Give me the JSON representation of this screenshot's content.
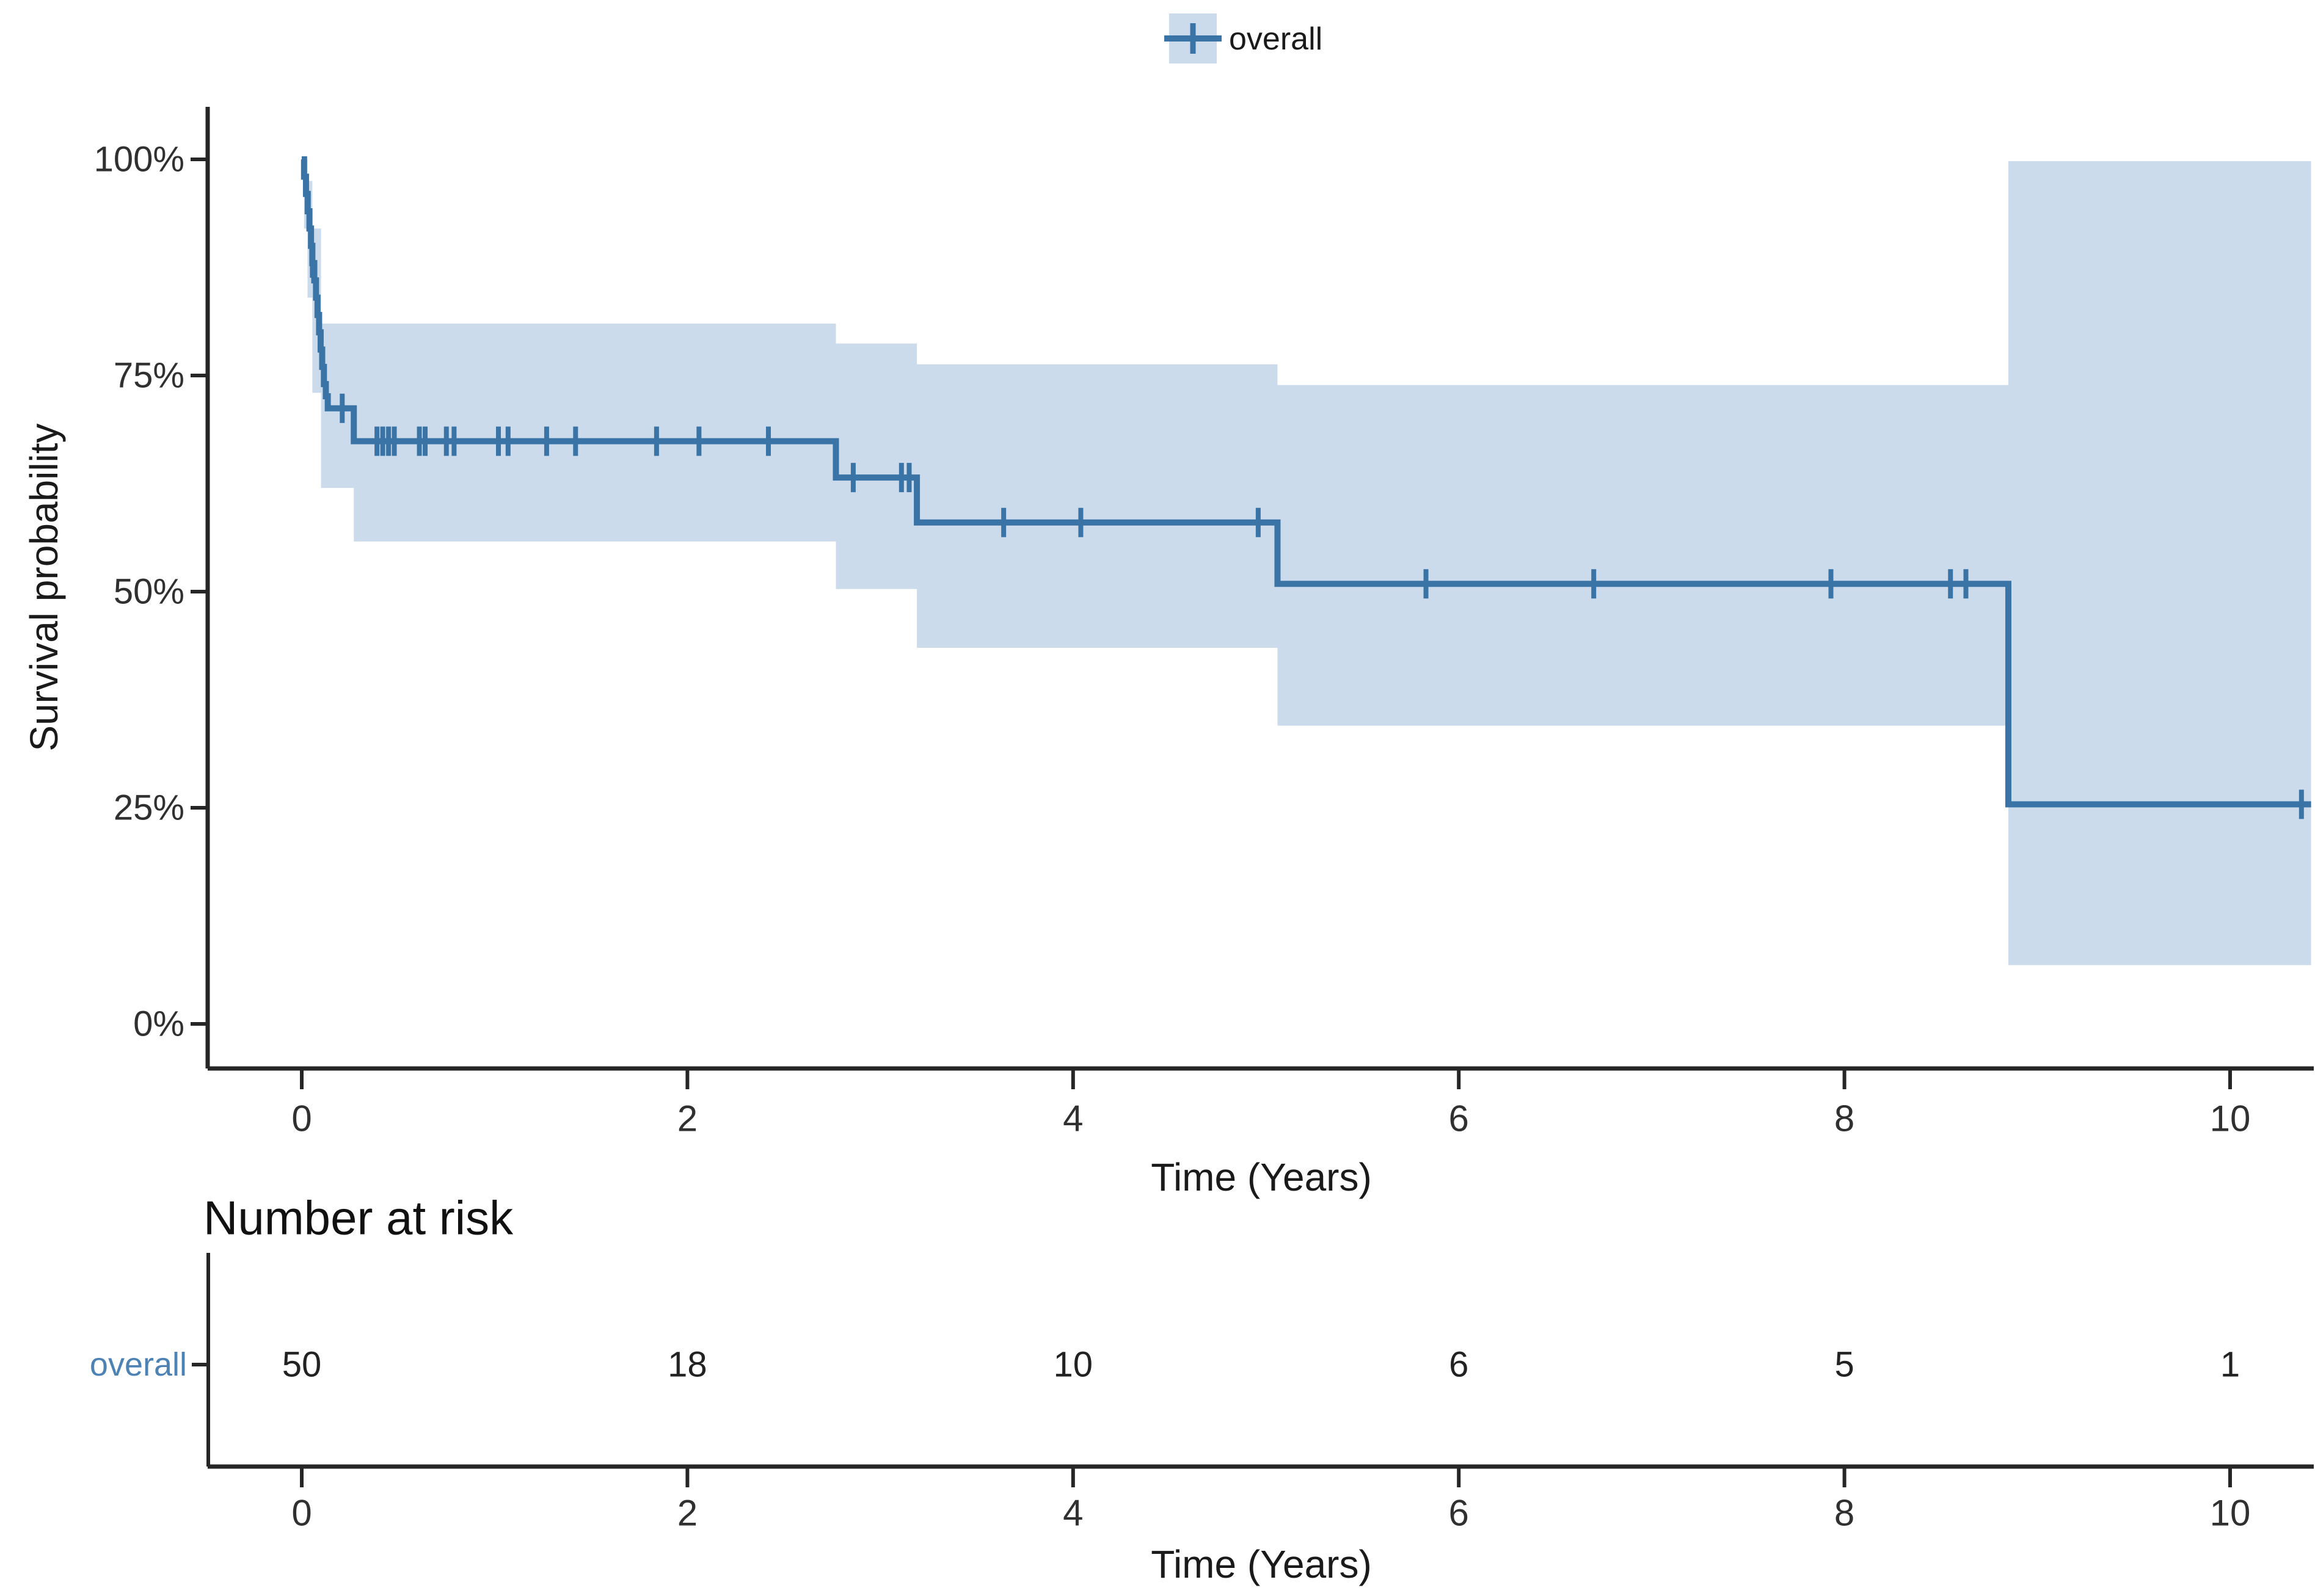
{
  "colors": {
    "curve": "#3a73a5",
    "ci_band": "#ccdbeb",
    "axis": "#262626",
    "tick_text": "#303030",
    "risk_row_label": "#4d82b4",
    "risk_values": "#222222"
  },
  "chart_data": {
    "type": "line",
    "subtype": "kaplan_meier_step",
    "title": "",
    "xlabel": "Time (Years)",
    "ylabel": "Survival probability",
    "xlim": [
      -0.5,
      10.45
    ],
    "ylim": [
      0,
      100
    ],
    "grid": "off",
    "legend_position": "top",
    "x_ticks": [
      0,
      2,
      4,
      6,
      8,
      10
    ],
    "x_tick_labels": [
      "0",
      "2",
      "4",
      "6",
      "8",
      "10"
    ],
    "y_ticks": [
      0,
      25,
      50,
      75,
      100
    ],
    "y_tick_labels": [
      "0%",
      "25%",
      "50%",
      "75%",
      "100%"
    ],
    "series": [
      {
        "name": "overall",
        "end_time": 10.42,
        "steps": [
          [
            0.0,
            100.0
          ],
          [
            0.012,
            98.0
          ],
          [
            0.022,
            96.0
          ],
          [
            0.031,
            94.0
          ],
          [
            0.04,
            92.0
          ],
          [
            0.048,
            90.0
          ],
          [
            0.055,
            88.0
          ],
          [
            0.065,
            86.0
          ],
          [
            0.074,
            84.0
          ],
          [
            0.082,
            82.0
          ],
          [
            0.09,
            80.0
          ],
          [
            0.098,
            78.0
          ],
          [
            0.106,
            76.0
          ],
          [
            0.115,
            74.0
          ],
          [
            0.125,
            72.6
          ],
          [
            0.135,
            71.2
          ],
          [
            0.27,
            67.4
          ],
          [
            2.77,
            63.2
          ],
          [
            3.19,
            58.0
          ],
          [
            5.06,
            50.9
          ],
          [
            8.85,
            25.4
          ]
        ],
        "censor_marks": [
          [
            0.055,
            88.0
          ],
          [
            0.21,
            71.2
          ],
          [
            0.39,
            67.4
          ],
          [
            0.42,
            67.4
          ],
          [
            0.45,
            67.4
          ],
          [
            0.48,
            67.4
          ],
          [
            0.61,
            67.4
          ],
          [
            0.64,
            67.4
          ],
          [
            0.75,
            67.4
          ],
          [
            0.79,
            67.4
          ],
          [
            1.02,
            67.4
          ],
          [
            1.07,
            67.4
          ],
          [
            1.27,
            67.4
          ],
          [
            1.42,
            67.4
          ],
          [
            1.84,
            67.4
          ],
          [
            2.06,
            67.4
          ],
          [
            2.42,
            67.4
          ],
          [
            2.86,
            63.2
          ],
          [
            3.11,
            63.2
          ],
          [
            3.15,
            63.2
          ],
          [
            3.64,
            58.0
          ],
          [
            4.04,
            58.0
          ],
          [
            4.96,
            58.0
          ],
          [
            5.83,
            50.9
          ],
          [
            6.7,
            50.9
          ],
          [
            7.93,
            50.9
          ],
          [
            8.55,
            50.9
          ],
          [
            8.63,
            50.9
          ],
          [
            10.37,
            25.4
          ]
        ],
        "ci_band": [
          [
            0.012,
            0.03,
            92.0,
            100.0
          ],
          [
            0.03,
            0.055,
            84.0,
            97.5
          ],
          [
            0.055,
            0.1,
            73.0,
            92.0
          ],
          [
            0.1,
            0.27,
            62.0,
            81.0
          ],
          [
            0.27,
            2.77,
            55.8,
            81.0
          ],
          [
            2.77,
            3.19,
            50.3,
            78.7
          ],
          [
            3.19,
            5.06,
            43.5,
            76.3
          ],
          [
            5.06,
            8.85,
            34.5,
            73.9
          ],
          [
            8.85,
            10.42,
            6.8,
            99.8
          ]
        ]
      }
    ],
    "risk_table": {
      "title": "Number at risk",
      "xlabel": "Time (Years)",
      "x_ticks": [
        0,
        2,
        4,
        6,
        8,
        10
      ],
      "x_tick_labels": [
        "0",
        "2",
        "4",
        "6",
        "8",
        "10"
      ],
      "rows": [
        {
          "name": "overall",
          "times": [
            0,
            2,
            4,
            6,
            8,
            10
          ],
          "at_risk": [
            "50",
            "18",
            "10",
            "6",
            "5",
            "1"
          ]
        }
      ]
    }
  }
}
